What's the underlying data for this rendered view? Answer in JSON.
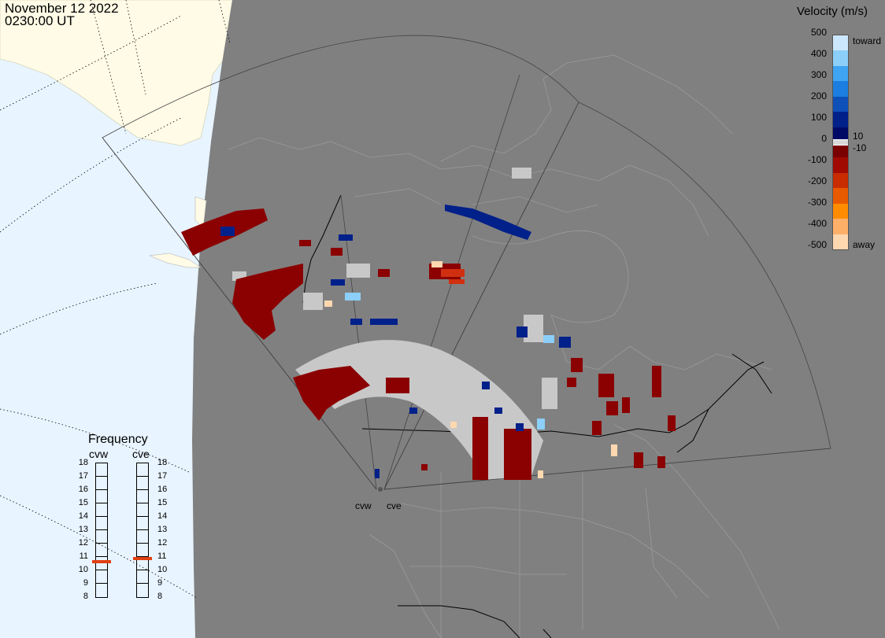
{
  "header": {
    "date": "November 12 2022",
    "time": "0230:00 UT"
  },
  "legend": {
    "title": "Velocity (m/s)",
    "ticks": [
      "500",
      "400",
      "300",
      "200",
      "100",
      "0",
      "-100",
      "-200",
      "-300",
      "-400",
      "-500"
    ],
    "toward_label": "toward",
    "away_label": "away",
    "pos_threshold": "10",
    "neg_threshold": "-10",
    "colors": [
      "#cce8ff",
      "#8ccff9",
      "#3fa4f2",
      "#1c7ee0",
      "#0d50b8",
      "#00208a",
      "#000a66",
      "#7a0000",
      "#a00a00",
      "#c82c00",
      "#e85a00",
      "#ff8c00",
      "#ffb068",
      "#ffd8b0"
    ]
  },
  "frequency_panel": {
    "title": "Frequency",
    "columns": [
      "cvw",
      "cve"
    ],
    "scale": [
      "18",
      "17",
      "16",
      "15",
      "14",
      "13",
      "12",
      "11",
      "10",
      "9",
      "8"
    ],
    "cvw_mhz": 10.6,
    "cve_mhz": 10.8,
    "indicator_color": "#e04010"
  },
  "radars": [
    "cvw",
    "cve"
  ],
  "map_colors": {
    "night": "#808080",
    "day_ocean": "#e8f4ff",
    "day_land": "#fffbe6",
    "ground_scatter": "#c8c8c8",
    "borders": "#9a9a9a"
  }
}
